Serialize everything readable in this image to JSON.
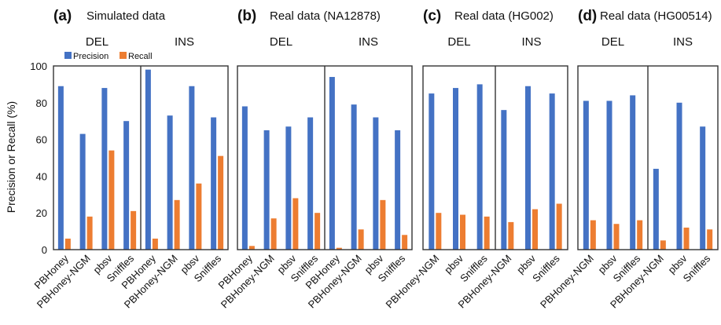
{
  "colors": {
    "precision": "#4472C4",
    "recall": "#ED7D31",
    "frame": "#333333"
  },
  "ylabel": "Precision or Recall (%)",
  "yticks": [
    "0",
    "20",
    "40",
    "60",
    "80",
    "100"
  ],
  "legend": {
    "precision": "Precision",
    "recall": "Recall"
  },
  "chart_data": [
    {
      "type": "bar",
      "letter": "(a)",
      "title": "Simulated data",
      "groups": [
        {
          "label": "DEL",
          "categories": [
            "PBHoney",
            "PBHoney-NGM",
            "pbsv",
            "Sniffles"
          ],
          "precision": [
            89,
            63,
            88,
            70
          ],
          "recall": [
            6,
            18,
            54,
            21
          ]
        },
        {
          "label": "INS",
          "categories": [
            "PBHoney",
            "PBHoney-NGM",
            "pbsv",
            "Sniffles"
          ],
          "precision": [
            98,
            73,
            89,
            72
          ],
          "recall": [
            6,
            27,
            36,
            51
          ]
        }
      ],
      "ylim": [
        0,
        100
      ]
    },
    {
      "type": "bar",
      "letter": "(b)",
      "title": "Real data (NA12878)",
      "groups": [
        {
          "label": "DEL",
          "categories": [
            "PBHoney",
            "PBHoney-NGM",
            "pbsv",
            "Sniffles"
          ],
          "precision": [
            78,
            65,
            67,
            72
          ],
          "recall": [
            2,
            17,
            28,
            20
          ]
        },
        {
          "label": "INS",
          "categories": [
            "PBHoney",
            "PBHoney-NGM",
            "pbsv",
            "Sniffles"
          ],
          "precision": [
            94,
            79,
            72,
            65
          ],
          "recall": [
            1,
            11,
            27,
            8
          ]
        }
      ],
      "ylim": [
        0,
        100
      ]
    },
    {
      "type": "bar",
      "letter": "(c)",
      "title": "Real data (HG002)",
      "groups": [
        {
          "label": "DEL",
          "categories": [
            "PBHoney-NGM",
            "pbsv",
            "Sniffles"
          ],
          "precision": [
            85,
            88,
            90
          ],
          "recall": [
            20,
            19,
            18
          ]
        },
        {
          "label": "INS",
          "categories": [
            "PBHoney-NGM",
            "pbsv",
            "Sniffles"
          ],
          "precision": [
            76,
            89,
            85
          ],
          "recall": [
            15,
            22,
            25
          ]
        }
      ],
      "ylim": [
        0,
        100
      ]
    },
    {
      "type": "bar",
      "letter": "(d)",
      "title": "Real data (HG00514)",
      "groups": [
        {
          "label": "DEL",
          "categories": [
            "PBHoney-NGM",
            "pbsv",
            "Sniffles"
          ],
          "precision": [
            81,
            81,
            84
          ],
          "recall": [
            16,
            14,
            16
          ]
        },
        {
          "label": "INS",
          "categories": [
            "PBHoney-NGM",
            "pbsv",
            "Sniffles"
          ],
          "precision": [
            44,
            80,
            67
          ],
          "recall": [
            5,
            12,
            11
          ]
        }
      ],
      "ylim": [
        0,
        100
      ]
    }
  ]
}
